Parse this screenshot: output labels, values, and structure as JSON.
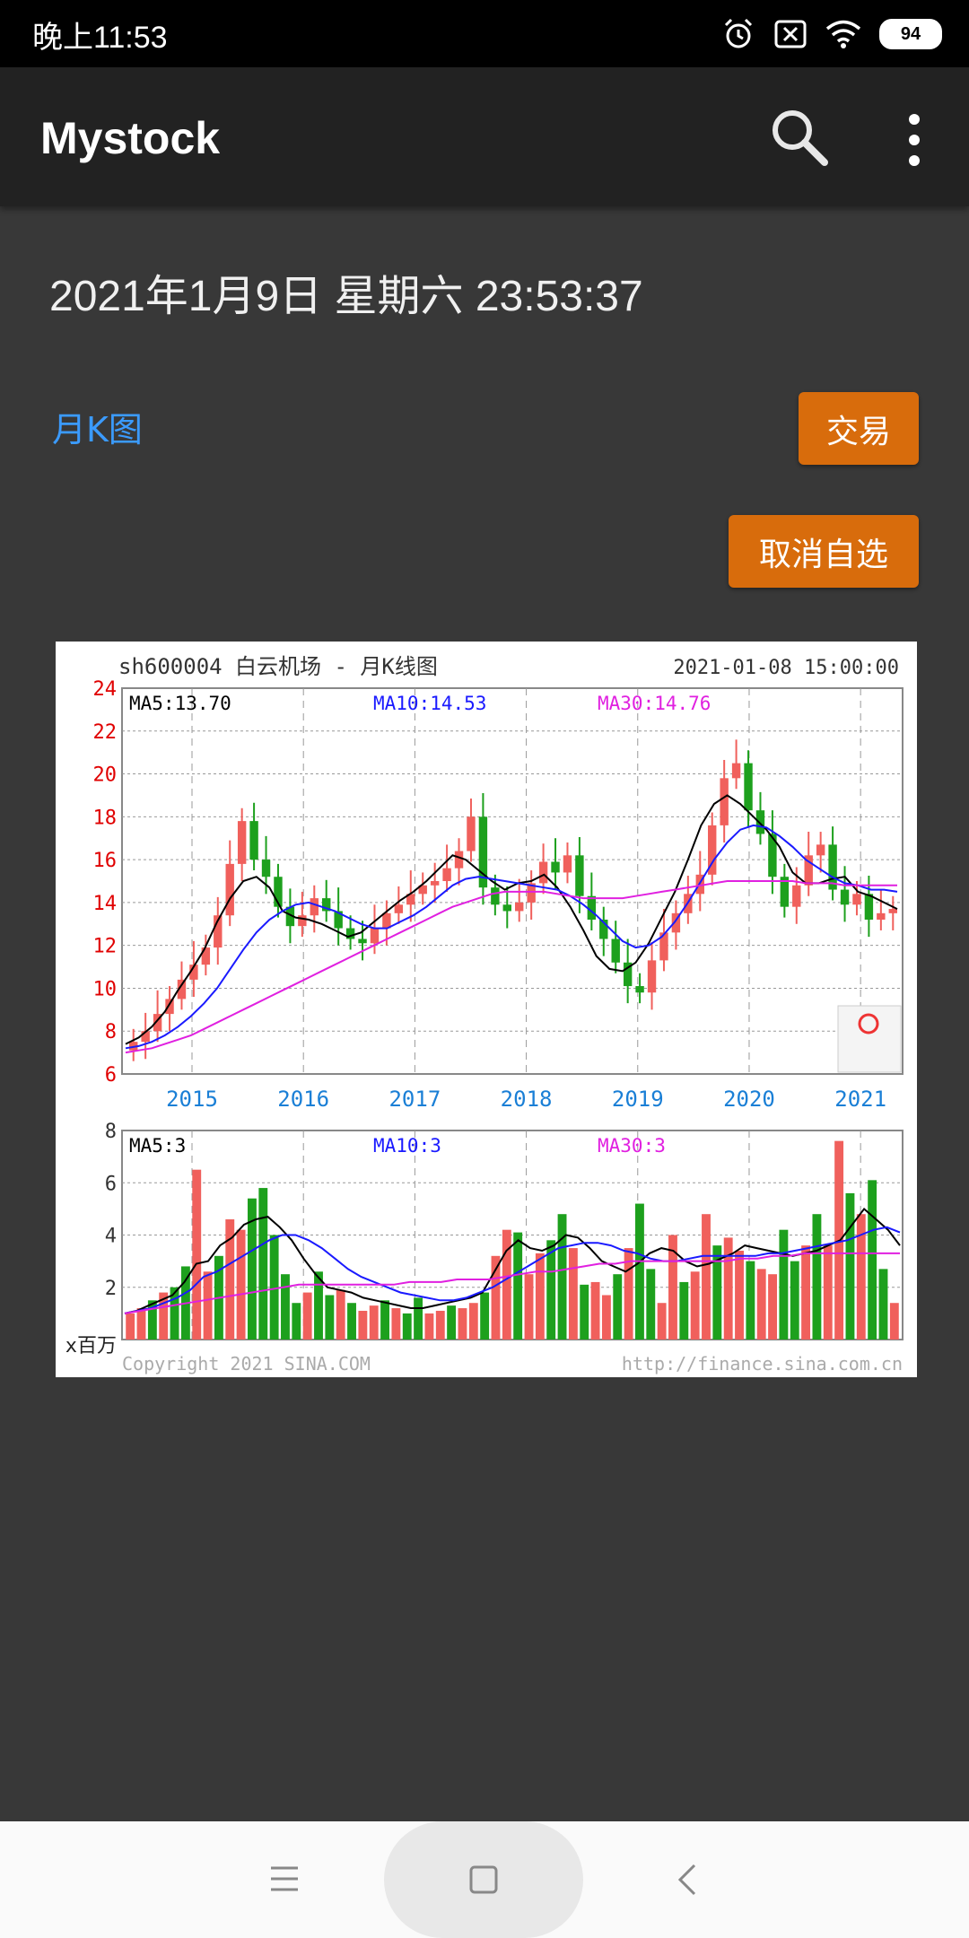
{
  "status_bar": {
    "time": "晚上11:53",
    "battery": "94"
  },
  "app_bar": {
    "title": "Mystock",
    "search_icon": "search-icon",
    "more_icon": "more-vert-icon"
  },
  "main": {
    "datetime": "2021年1月9日 星期六  23:53:37",
    "chart_link": "月K图",
    "trade_label": "交易",
    "cancel_label": "取消自选"
  },
  "colors": {
    "accent": "#d86c0c",
    "link": "#3b9bff",
    "up": "#f0605c",
    "down": "#1da01d",
    "ma5": "#000000",
    "ma10": "#1a1aff",
    "ma30": "#e020e0"
  },
  "chart_data": {
    "type": "candlestick",
    "title": "sh600004  白云机场 - 月K线图",
    "timestamp": "2021-01-08 15:00:00",
    "copyright": "Copyright 2021 SINA.COM",
    "source_url": "http://finance.sina.com.cn",
    "price_panel": {
      "ylim": [
        6,
        24
      ],
      "y_ticks": [
        "24",
        "22",
        "20",
        "18",
        "16",
        "14",
        "12",
        "10",
        "8",
        "6"
      ],
      "x_labels": [
        "2015",
        "2016",
        "2017",
        "2018",
        "2019",
        "2020",
        "2021"
      ],
      "ma_labels": {
        "ma5": "MA5:13.70",
        "ma10": "MA10:14.53",
        "ma30": "MA30:14.76"
      },
      "series": [
        {
          "name": "close",
          "values": [
            7.5,
            8.0,
            8.8,
            9.5,
            10.4,
            11.1,
            11.9,
            13.4,
            15.8,
            17.8,
            16.0,
            15.2,
            13.8,
            12.9,
            13.4,
            14.2,
            13.6,
            12.8,
            12.3,
            12.1,
            12.8,
            13.5,
            13.9,
            14.4,
            14.8,
            15.0,
            15.6,
            16.4,
            18.0,
            14.7,
            13.9,
            13.6,
            14.0,
            14.9,
            15.9,
            15.4,
            16.2,
            14.3,
            13.2,
            12.3,
            11.2,
            10.1,
            9.8,
            11.3,
            12.6,
            13.5,
            14.4,
            15.3,
            17.6,
            19.8,
            20.5,
            18.3,
            17.2,
            15.2,
            13.8,
            14.8,
            16.2,
            16.7,
            14.6,
            13.9,
            14.4,
            13.2,
            13.5,
            13.7
          ]
        },
        {
          "name": "MA5",
          "values": [
            7.4,
            7.7,
            8.2,
            8.9,
            9.9,
            10.8,
            11.8,
            13.1,
            14.2,
            15.0,
            15.2,
            14.7,
            13.6,
            13.3,
            13.2,
            13.0,
            12.7,
            12.4,
            12.6,
            13.1,
            13.6,
            14.1,
            14.5,
            15.0,
            15.6,
            16.2,
            16.0,
            15.5,
            15.0,
            14.6,
            14.9,
            15.0,
            15.3,
            14.7,
            13.8,
            12.7,
            11.5,
            10.9,
            10.8,
            11.2,
            12.1,
            13.3,
            14.5,
            16.0,
            17.6,
            18.6,
            19.0,
            18.6,
            18.0,
            17.4,
            16.6,
            15.4,
            14.9,
            14.9,
            15.1,
            15.2,
            14.5,
            14.3,
            14.0,
            13.7
          ]
        },
        {
          "name": "MA10",
          "values": [
            7.2,
            7.3,
            7.5,
            7.8,
            8.2,
            8.7,
            9.3,
            10.0,
            10.9,
            11.8,
            12.6,
            13.2,
            13.6,
            13.9,
            14.0,
            13.8,
            13.6,
            13.3,
            13.0,
            12.8,
            12.8,
            13.1,
            13.4,
            13.8,
            14.3,
            14.8,
            15.1,
            15.2,
            15.1,
            15.0,
            14.9,
            14.8,
            14.7,
            14.6,
            14.3,
            13.9,
            13.4,
            12.8,
            12.2,
            11.9,
            12.0,
            12.4,
            13.1,
            14.0,
            15.0,
            16.0,
            16.8,
            17.4,
            17.6,
            17.5,
            17.1,
            16.6,
            16.0,
            15.6,
            15.2,
            14.9,
            14.8,
            14.6,
            14.6,
            14.5
          ]
        },
        {
          "name": "MA30",
          "values": [
            7.0,
            7.1,
            7.2,
            7.4,
            7.6,
            7.8,
            8.1,
            8.4,
            8.7,
            9.0,
            9.3,
            9.6,
            9.9,
            10.2,
            10.5,
            10.8,
            11.1,
            11.4,
            11.7,
            12.0,
            12.3,
            12.6,
            12.9,
            13.2,
            13.5,
            13.8,
            14.0,
            14.2,
            14.4,
            14.5,
            14.5,
            14.5,
            14.5,
            14.4,
            14.3,
            14.2,
            14.2,
            14.2,
            14.2,
            14.3,
            14.4,
            14.5,
            14.6,
            14.7,
            14.8,
            14.9,
            15.0,
            15.0,
            15.0,
            15.0,
            15.0,
            15.0,
            14.9,
            14.9,
            14.9,
            14.8,
            14.8,
            14.8,
            14.8,
            14.8
          ]
        }
      ]
    },
    "volume_panel": {
      "ylim": [
        0,
        8
      ],
      "y_ticks": [
        "8",
        "6",
        "4",
        "2"
      ],
      "unit_label": "x百万",
      "ma_labels": {
        "ma5": "MA5:3",
        "ma10": "MA10:3",
        "ma30": "MA30:3"
      },
      "series": [
        {
          "name": "volume",
          "values": [
            1.0,
            1.2,
            1.5,
            1.8,
            2.0,
            2.8,
            6.5,
            2.6,
            3.2,
            4.6,
            4.2,
            5.4,
            5.8,
            4.0,
            2.5,
            1.4,
            1.8,
            2.6,
            1.7,
            1.9,
            1.4,
            1.1,
            1.3,
            1.5,
            1.2,
            1.0,
            1.6,
            1.0,
            1.1,
            1.3,
            1.2,
            1.4,
            1.8,
            3.2,
            4.2,
            4.1,
            2.5,
            3.3,
            3.8,
            4.8,
            3.5,
            2.1,
            2.2,
            1.7,
            2.5,
            3.5,
            5.2,
            2.7,
            1.4,
            4.0,
            2.2,
            2.6,
            4.8,
            3.6,
            3.9,
            3.4,
            3.0,
            2.7,
            2.5,
            4.2,
            3.0,
            3.6,
            4.8,
            3.6,
            7.6,
            5.6,
            4.8,
            6.1,
            2.7,
            1.4
          ]
        },
        {
          "name": "MA5",
          "values": [
            1.0,
            1.1,
            1.3,
            1.5,
            1.7,
            2.2,
            2.9,
            3.0,
            3.6,
            3.9,
            4.4,
            4.6,
            4.7,
            4.3,
            3.8,
            3.1,
            2.5,
            2.0,
            1.9,
            1.8,
            1.6,
            1.5,
            1.4,
            1.3,
            1.2,
            1.2,
            1.3,
            1.4,
            1.5,
            1.6,
            1.8,
            2.6,
            3.4,
            3.8,
            3.5,
            3.4,
            3.6,
            4.0,
            3.9,
            3.5,
            3.0,
            2.8,
            2.6,
            2.9,
            3.3,
            3.5,
            3.4,
            3.0,
            2.8,
            2.9,
            3.1,
            3.3,
            3.6,
            3.5,
            3.4,
            3.3,
            3.2,
            3.3,
            3.4,
            3.6,
            3.8,
            4.4,
            5.0,
            4.6,
            4.2,
            3.6
          ]
        },
        {
          "name": "MA10",
          "values": [
            1.0,
            1.1,
            1.2,
            1.4,
            1.6,
            1.9,
            2.4,
            2.6,
            2.9,
            3.2,
            3.5,
            3.8,
            4.0,
            4.0,
            3.8,
            3.5,
            3.1,
            2.7,
            2.4,
            2.2,
            2.0,
            1.8,
            1.7,
            1.6,
            1.5,
            1.5,
            1.6,
            1.8,
            2.0,
            2.3,
            2.6,
            2.9,
            3.2,
            3.5,
            3.6,
            3.7,
            3.7,
            3.6,
            3.4,
            3.3,
            3.1,
            3.0,
            3.0,
            3.1,
            3.2,
            3.2,
            3.2,
            3.2,
            3.2,
            3.3,
            3.3,
            3.4,
            3.5,
            3.6,
            3.7,
            3.8,
            4.0,
            4.2,
            4.3,
            4.1
          ]
        },
        {
          "name": "MA30",
          "values": [
            1.0,
            1.1,
            1.2,
            1.3,
            1.4,
            1.5,
            1.6,
            1.7,
            1.8,
            1.9,
            2.0,
            2.1,
            2.1,
            2.1,
            2.1,
            2.1,
            2.1,
            2.1,
            2.2,
            2.2,
            2.2,
            2.3,
            2.3,
            2.3,
            2.4,
            2.5,
            2.6,
            2.6,
            2.7,
            2.8,
            2.9,
            2.9,
            3.0,
            3.0,
            3.0,
            3.0,
            3.0,
            3.0,
            3.0,
            3.1,
            3.1,
            3.2,
            3.2,
            3.3,
            3.3,
            3.3,
            3.3,
            3.3,
            3.3,
            3.3
          ]
        }
      ]
    }
  }
}
